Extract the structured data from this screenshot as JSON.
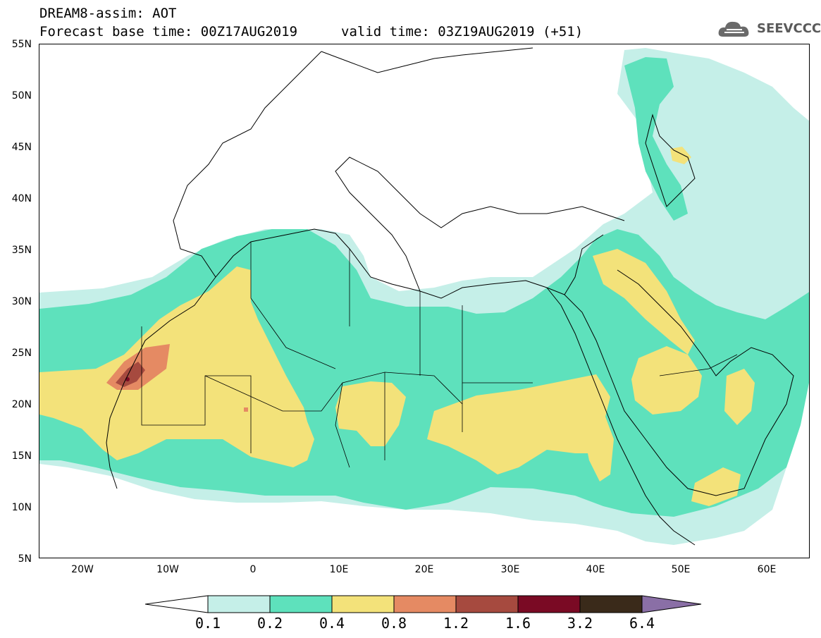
{
  "header": {
    "title": "DREAM8-assim: AOT",
    "base_time": "Forecast base time: 00Z17AUG2019",
    "valid_time": "valid time: 03Z19AUG2019 (+51)",
    "logo_text": "SEEVCCC"
  },
  "map": {
    "lat_labels": [
      "55N",
      "50N",
      "45N",
      "40N",
      "35N",
      "30N",
      "25N",
      "20N",
      "15N",
      "10N",
      "5N"
    ],
    "lon_labels": [
      "20W",
      "10W",
      "0",
      "10E",
      "20E",
      "30E",
      "40E",
      "50E",
      "60E"
    ],
    "lon_range": [
      -25,
      65
    ],
    "lat_range": [
      5,
      55
    ]
  },
  "legend": {
    "levels": [
      "0.1",
      "0.2",
      "0.4",
      "0.8",
      "1.2",
      "1.6",
      "3.2",
      "6.4"
    ],
    "colors": {
      "below": "#ffffff",
      "c1": "#c5efe8",
      "c2": "#5ee1bc",
      "c3": "#f3e27a",
      "c4": "#e58a63",
      "c5": "#a64a3f",
      "c6": "#7a0a24",
      "c7": "#3a2a1a",
      "above": "#8a6fa6"
    }
  }
}
